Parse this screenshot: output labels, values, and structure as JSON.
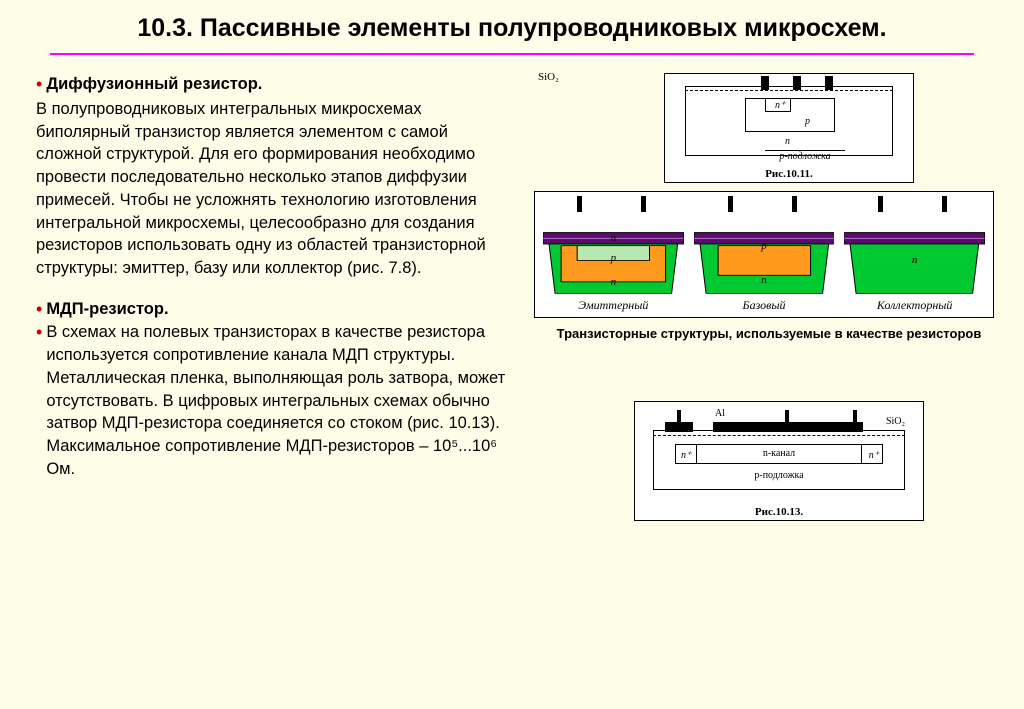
{
  "title": "10.3. Пассивные элементы полупроводниковых микросхем.",
  "sections": [
    {
      "heading": "Диффузионный резистор.",
      "text": " В полупроводниковых интегральных микросхемах биполярный транзистор является элементом с самой сложной структурой. Для его формирования необходимо провести последовательно несколько этапов диффузии примесей. Чтобы не усложнять технологию изготовления интегральной микросхемы, целесообразно для создания резисторов использовать одну из областей транзисторной структуры: эмиттер, базу или коллектор (рис. 7.8)."
    },
    {
      "heading": "МДП-резистор.",
      "text": " В схемах на полевых транзисторах в качестве резистора используется сопротивление канала МДП структуры. Металлическая пленка, выполняющая роль затвора, может отсутствовать. В цифровых интегральных схемах обычно затвор МДП-резистора соединяется со стоком (рис. 10.13). Максимальное сопротивление МДП-резисторов – 10⁵...10⁶ Ом."
    }
  ],
  "fig11": {
    "caption": "Рис.10.11.",
    "labels": {
      "nplus": "n⁺",
      "p": "p",
      "n": "n",
      "sub": "p-подложка"
    }
  },
  "fig3": {
    "sio2": "SiO₂",
    "structures": [
      {
        "name": "Эмиттерный",
        "layers": [
          "n",
          "p",
          "n"
        ]
      },
      {
        "name": "Базовый",
        "layers": [
          "p",
          "n"
        ]
      },
      {
        "name": "Коллекторный",
        "layers": [
          "n"
        ]
      }
    ],
    "caption": "Транзисторные структуры, используемые в качестве резисторов",
    "colors": {
      "oxide": "#5a0a6a",
      "n_region": "#00c830",
      "p_region": "#ff9a1f",
      "n_emitter": "#b8e8b0"
    }
  },
  "fig13": {
    "caption": "Рис.10.13.",
    "labels": {
      "al": "Al",
      "sio2": "SiO₂",
      "nplus": "n⁺",
      "chan": "n-канал",
      "sub": "p-подложка"
    }
  }
}
